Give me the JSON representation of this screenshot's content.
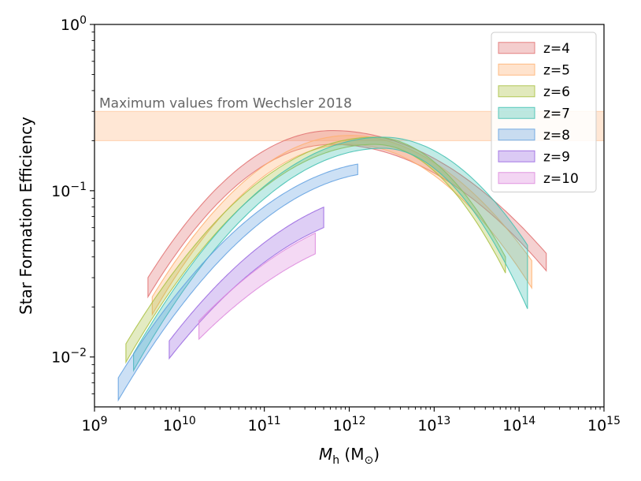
{
  "chart_data": {
    "type": "area",
    "xscale": "log",
    "yscale": "log",
    "xlim_exp": [
      9,
      15
    ],
    "ylim_exp": [
      -2.3,
      0
    ],
    "x_tick_labels": [
      {
        "exp": 9,
        "base": "10",
        "sup": "9"
      },
      {
        "exp": 10,
        "base": "10",
        "sup": "10"
      },
      {
        "exp": 11,
        "base": "10",
        "sup": "11"
      },
      {
        "exp": 12,
        "base": "10",
        "sup": "12"
      },
      {
        "exp": 13,
        "base": "10",
        "sup": "13"
      },
      {
        "exp": 14,
        "base": "10",
        "sup": "14"
      },
      {
        "exp": 15,
        "base": "10",
        "sup": "15"
      }
    ],
    "y_tick_labels": [
      {
        "exp": 0,
        "base": "10",
        "sup": "0"
      },
      {
        "exp": -1,
        "base": "10",
        "sup": "−1"
      },
      {
        "exp": -2,
        "base": "10",
        "sup": "−2"
      }
    ],
    "xlabel": {
      "italic": "M",
      "sub": "h",
      "unit_open": " (M",
      "unit_sub": "⊙",
      "unit_close": ")"
    },
    "ylabel": "Star Formation Efficiency",
    "legend_position": "top-right",
    "reference_band": {
      "label": "Maximum values from Wechsler 2018",
      "y_low": 0.2,
      "y_high": 0.3,
      "color": "#ffbb88"
    },
    "series": [
      {
        "name": "z=4",
        "color": "#e07070",
        "log_m_min": 9.63,
        "log_m_max": 14.32,
        "peak_log_m": 11.8,
        "lower_peak": 0.19,
        "upper_peak": 0.23,
        "lower_left": 0.023,
        "upper_left": 0.03,
        "lower_right": 0.033,
        "upper_right": 0.042
      },
      {
        "name": "z=5",
        "color": "#ffb070",
        "log_m_min": 9.68,
        "log_m_max": 14.15,
        "peak_log_m": 12.0,
        "lower_peak": 0.19,
        "upper_peak": 0.215,
        "lower_left": 0.018,
        "upper_left": 0.023,
        "lower_right": 0.026,
        "upper_right": 0.038
      },
      {
        "name": "z=6",
        "color": "#a8c040",
        "log_m_min": 9.37,
        "log_m_max": 13.84,
        "peak_log_m": 12.3,
        "lower_peak": 0.19,
        "upper_peak": 0.21,
        "lower_left": 0.0093,
        "upper_left": 0.012,
        "lower_right": 0.032,
        "upper_right": 0.04
      },
      {
        "name": "z=7",
        "color": "#40c0b0",
        "log_m_min": 9.46,
        "log_m_max": 14.1,
        "peak_log_m": 12.4,
        "lower_peak": 0.18,
        "upper_peak": 0.21,
        "lower_left": 0.0083,
        "upper_left": 0.0105,
        "lower_right": 0.0195,
        "upper_right": 0.047
      },
      {
        "name": "z=8",
        "color": "#60a0e0",
        "log_m_min": 9.28,
        "log_m_max": 12.1,
        "peak_log_m": 12.45,
        "lower_peak": 0.13,
        "upper_peak": 0.15,
        "lower_left": 0.0055,
        "upper_left": 0.0075
      },
      {
        "name": "z=9",
        "color": "#9966e0",
        "log_m_min": 9.88,
        "log_m_max": 11.7,
        "peak_log_m": 12.6,
        "lower_peak": 0.075,
        "upper_peak": 0.1,
        "lower_left": 0.0098,
        "upper_left": 0.0125
      },
      {
        "name": "z=10",
        "color": "#dd88dd",
        "log_m_min": 10.23,
        "log_m_max": 11.6,
        "peak_log_m": 12.8,
        "lower_peak": 0.058,
        "upper_peak": 0.078,
        "lower_left": 0.0128,
        "upper_left": 0.0165
      }
    ]
  }
}
